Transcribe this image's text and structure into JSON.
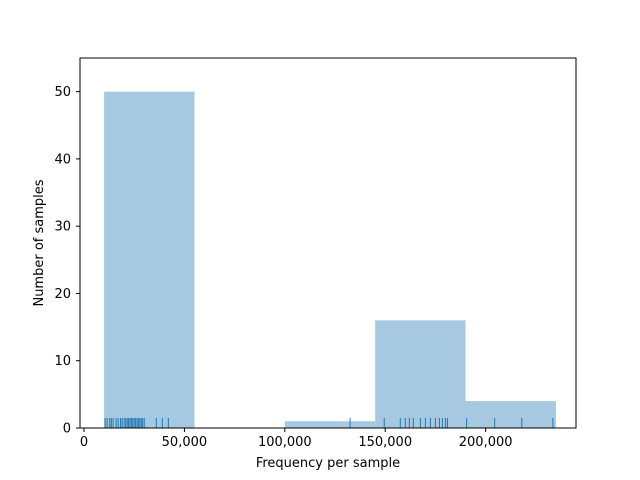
{
  "chart_data": {
    "type": "bar",
    "title": "",
    "xlabel": "Frequency per sample",
    "ylabel": "Number of samples",
    "xlim": [
      -2000,
      245000
    ],
    "ylim": [
      0,
      55
    ],
    "xticks": [
      0,
      50000,
      100000,
      150000,
      200000
    ],
    "xtick_labels": [
      "0",
      "50,000",
      "100,000",
      "150,000",
      "200,000"
    ],
    "yticks": [
      0,
      10,
      20,
      30,
      40,
      50
    ],
    "ytick_labels": [
      "0",
      "10",
      "20",
      "30",
      "40",
      "50"
    ],
    "grid": false,
    "legend": "none",
    "bins": [
      {
        "x0": 10000,
        "x1": 55000,
        "count": 50
      },
      {
        "x0": 55000,
        "x1": 100000,
        "count": 0
      },
      {
        "x0": 100000,
        "x1": 145000,
        "count": 1
      },
      {
        "x0": 145000,
        "x1": 190000,
        "count": 16
      },
      {
        "x0": 190000,
        "x1": 235000,
        "count": 4
      }
    ],
    "rug": [
      10500,
      11500,
      12800,
      13600,
      14500,
      16000,
      17000,
      18200,
      19000,
      20000,
      20800,
      21500,
      22200,
      22900,
      23600,
      24300,
      25000,
      25700,
      26400,
      27100,
      27800,
      28500,
      29200,
      30000,
      36000,
      39000,
      42000,
      132500,
      149500,
      157500,
      160000,
      162000,
      164000,
      167500,
      170000,
      172500,
      175000,
      177000,
      178500,
      180000,
      181000,
      190500,
      204500,
      218000,
      233500
    ],
    "colors": {
      "bar": "#a6c8e0",
      "rug": "#1f77b4"
    }
  }
}
